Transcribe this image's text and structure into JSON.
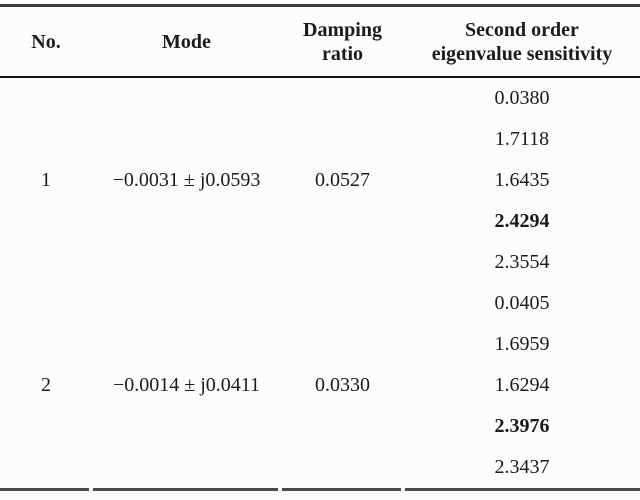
{
  "page": {
    "background": "#fcfcfc",
    "text_color": "#1b1b1b",
    "rule_top_color": "#3c3c3c",
    "rule_header_color": "#151515",
    "rule_bottom_color": "#4a4a4a"
  },
  "table": {
    "headers": [
      {
        "label": "No."
      },
      {
        "label": "Mode"
      },
      {
        "label": "Damping\nratio"
      },
      {
        "label": "Second order\neigenvalue sensitivity"
      }
    ],
    "groups": [
      {
        "no": "1",
        "mode": "−0.0031 ± j0.0593",
        "damping_ratio": "0.0527",
        "sensitivities": [
          "0.0380",
          "1.7118",
          "1.6435",
          "2.4294",
          "2.3554"
        ],
        "bold_value": "2.4294"
      },
      {
        "no": "2",
        "mode": "−0.0014 ± j0.0411",
        "damping_ratio": "0.0330",
        "sensitivities": [
          "0.0405",
          "1.6959",
          "1.6294",
          "2.3976",
          "2.3437"
        ],
        "bold_value": "2.3976"
      }
    ]
  }
}
